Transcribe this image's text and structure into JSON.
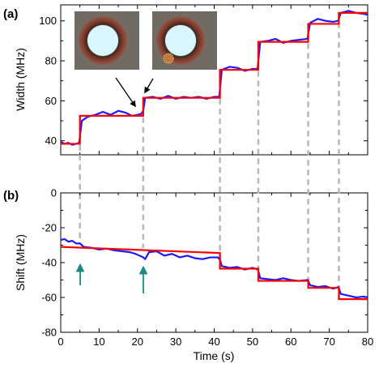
{
  "colors": {
    "measured": "#1a1aff",
    "steps": "#ff0000",
    "dashes": "#b8b8b8",
    "arrows_b": "#1a8a84",
    "arrows_a": "#000000"
  },
  "chart_data": [
    {
      "panel_label": "(a)",
      "type": "line",
      "xlabel": "",
      "ylabel": "Width (MHz)",
      "xlim": [
        0,
        80
      ],
      "ylim": [
        33,
        108
      ],
      "yticks": [
        40,
        60,
        80,
        100
      ],
      "xticks": [
        0,
        10,
        20,
        30,
        40,
        50,
        60,
        70,
        80
      ],
      "xtick_labels_visible": false,
      "steps": {
        "x": [
          0,
          5,
          5,
          21.5,
          21.5,
          41.5,
          41.5,
          51.5,
          51.5,
          64.5,
          64.5,
          72.5,
          72.5,
          80
        ],
        "y": [
          38.5,
          38.5,
          52.5,
          52.5,
          61.5,
          61.5,
          75.5,
          75.5,
          89.5,
          89.5,
          98.5,
          98.5,
          104,
          104
        ]
      },
      "measured": {
        "x": [
          0,
          1,
          2,
          3,
          4,
          4.8,
          5.5,
          7,
          9,
          11,
          13,
          15,
          17,
          18.5,
          20,
          21,
          21.5,
          22,
          24,
          26,
          28,
          30,
          32,
          34,
          36,
          38,
          40,
          41.3,
          42,
          44,
          46,
          48,
          50,
          51.3,
          52,
          54,
          56,
          58,
          60,
          62,
          64.3,
          65,
          67,
          69,
          71,
          72.3,
          73,
          75,
          77,
          79,
          80
        ],
        "y": [
          39.5,
          38.5,
          39,
          38,
          38.5,
          39,
          50,
          52,
          53,
          54.5,
          53,
          55,
          54,
          52.5,
          53,
          53.5,
          55,
          61.5,
          62,
          61,
          62.5,
          61,
          62,
          61.5,
          62,
          61,
          62,
          62,
          75.5,
          77,
          76.5,
          75,
          76,
          76,
          89.5,
          90,
          91,
          89,
          90,
          90.5,
          91,
          99,
          101,
          100,
          99.5,
          100,
          104,
          105,
          104,
          103.5,
          103
        ]
      },
      "dashed_guides_x": [
        5,
        21.5,
        41.5,
        51.5,
        64.5,
        72.5
      ],
      "annotations": [
        "inset photo before",
        "inset photo after",
        "arrow to step at ~20 s",
        "arrow to step at ~22 s"
      ]
    },
    {
      "panel_label": "(b)",
      "type": "line",
      "xlabel": "Time (s)",
      "ylabel": "Shift (MHz)",
      "xlim": [
        0,
        80
      ],
      "ylim": [
        -80,
        0
      ],
      "yticks": [
        -80,
        -60,
        -40,
        -20,
        0
      ],
      "xticks": [
        0,
        10,
        20,
        30,
        40,
        50,
        60,
        70,
        80
      ],
      "steps": {
        "x": [
          0,
          41.5,
          41.5,
          51.5,
          51.5,
          64.5,
          64.5,
          72.5,
          72.5,
          80
        ],
        "y": [
          -31,
          -34.5,
          -43.5,
          -43.5,
          -50.5,
          -50.5,
          -54.5,
          -54.5,
          -61,
          -61
        ]
      },
      "measured": {
        "x": [
          0,
          1,
          2,
          3,
          4,
          5,
          6,
          8,
          10,
          12,
          14,
          16,
          18,
          19.5,
          20.5,
          21.5,
          22,
          23,
          25,
          27,
          29,
          31,
          33,
          35,
          37,
          39,
          41,
          41.6,
          42,
          44,
          46,
          48,
          50,
          51.4,
          52,
          54,
          56,
          58,
          60,
          62,
          64.4,
          65,
          67,
          69,
          71,
          72.4,
          73,
          75,
          77,
          79,
          80
        ],
        "y": [
          -27,
          -26.5,
          -28,
          -27.5,
          -29,
          -29,
          -31,
          -31.5,
          -32.5,
          -32,
          -33,
          -33.5,
          -34,
          -35,
          -36,
          -37,
          -38,
          -34,
          -33.5,
          -36,
          -35,
          -37,
          -36,
          -37.5,
          -38,
          -37,
          -37,
          -39,
          -42,
          -43,
          -42.5,
          -44,
          -43,
          -44,
          -49,
          -49.5,
          -50,
          -49,
          -50,
          -50.5,
          -50,
          -53,
          -54,
          -53.5,
          -55,
          -54,
          -58,
          -59,
          -60,
          -59.5,
          -60
        ]
      },
      "dashed_guides_x": [
        5,
        21.5,
        41.5,
        51.5,
        64.5,
        72.5
      ],
      "annotations": [
        "arrow at 5 s",
        "arrow at 21.5 s"
      ]
    }
  ]
}
